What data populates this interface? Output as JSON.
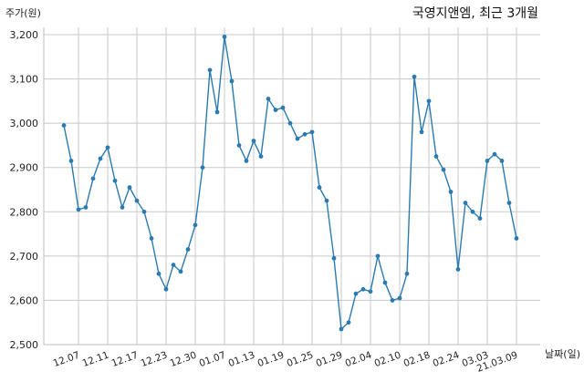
{
  "chart_data": {
    "type": "line",
    "title": "국영지앤엠, 최근 3개월",
    "ylabel": "주가(원)",
    "xlabel": "날짜(일)",
    "ylim": [
      2500,
      3200
    ],
    "yticks": [
      2500,
      2600,
      2700,
      2800,
      2900,
      3000,
      3100,
      3200
    ],
    "ytick_labels": [
      "2,500",
      "2,600",
      "2,700",
      "2,800",
      "2,900",
      "3,000",
      "3,100",
      "3,200"
    ],
    "xtick_labels": [
      "12.07",
      "12.11",
      "12.17",
      "12.23",
      "12.30",
      "01.07",
      "01.13",
      "01.19",
      "01.25",
      "01.29",
      "02.04",
      "02.10",
      "02.18",
      "02.24",
      "03.03",
      "21.03.09"
    ],
    "xtick_indices": [
      2,
      6,
      10,
      14,
      18,
      22,
      26,
      30,
      34,
      38,
      42,
      46,
      50,
      54,
      58,
      62
    ],
    "grid": true,
    "color": "#2b7bb0",
    "series": [
      {
        "values": [
          2995,
          2915,
          2805,
          2810,
          2875,
          2920,
          2945,
          2870,
          2810,
          2855,
          2825,
          2800,
          2740,
          2660,
          2625,
          2680,
          2665,
          2715,
          2770,
          2900,
          3120,
          3025,
          3195,
          3095,
          2950,
          2915,
          2960,
          2925,
          3055,
          3030,
          3035,
          3000,
          2965,
          2975,
          2980,
          2855,
          2825,
          2695,
          2535,
          2550,
          2615,
          2625,
          2620,
          2700,
          2640,
          2600,
          2605,
          2660,
          3105,
          2980,
          3050,
          2925,
          2895,
          2845,
          2670,
          2820,
          2800,
          2785,
          2915,
          2930,
          2915,
          2820,
          2740
        ]
      }
    ]
  }
}
